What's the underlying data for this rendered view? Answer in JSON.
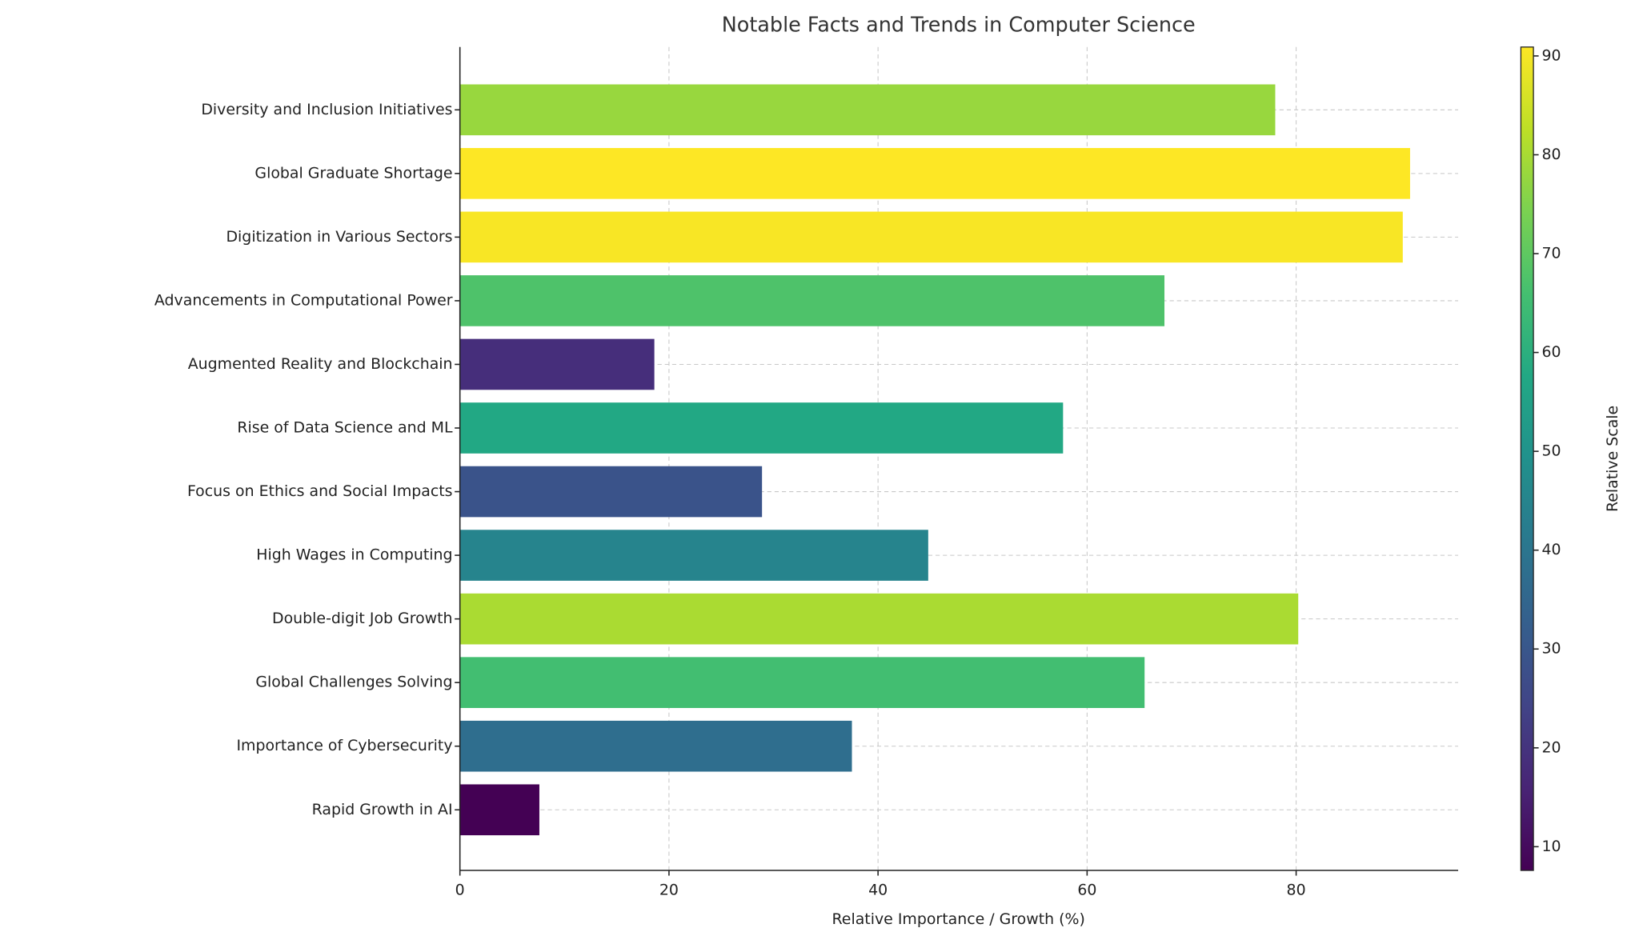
{
  "chart_data": {
    "type": "barh",
    "title": "Notable Facts and Trends in Computer Science",
    "x_label": "Relative Importance / Growth (%)",
    "categories": [
      "Rapid Growth in AI",
      "Importance of Cybersecurity",
      "Global Challenges Solving",
      "Double-digit Job Growth",
      "High Wages in Computing",
      "Focus on Ethics and Social Impacts",
      "Rise of Data Science and ML",
      "Augmented Reality and Blockchain",
      "Advancements in Computational Power",
      "Digitization in Various Sectors",
      "Global Graduate Shortage",
      "Diversity and Inclusion Initiatives"
    ],
    "values": [
      7.6,
      37.5,
      65.5,
      80.2,
      44.8,
      28.9,
      57.7,
      18.6,
      67.4,
      90.2,
      90.9,
      78.0
    ],
    "colormap": "viridis",
    "xlim": [
      0,
      95.5
    ],
    "xticks": [
      0,
      20,
      40,
      60,
      80
    ],
    "grid": true,
    "colorbar": {
      "label": "Relative Scale",
      "lim": [
        7.6,
        90.9
      ],
      "ticks": [
        10,
        20,
        30,
        40,
        50,
        60,
        70,
        80,
        90
      ]
    }
  }
}
